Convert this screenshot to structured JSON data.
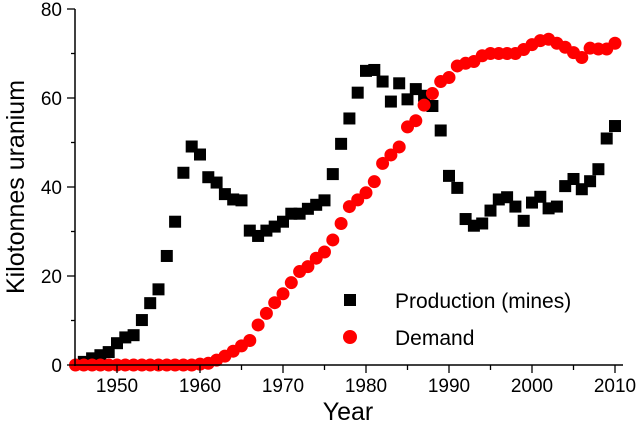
{
  "chart_data": {
    "type": "scatter",
    "title": "",
    "xlabel": "Year",
    "ylabel": "Kilotonnes uranium",
    "xlim": [
      1945,
      2011
    ],
    "ylim": [
      0,
      80
    ],
    "xticks": [
      "1950",
      "1960",
      "1970",
      "1980",
      "1990",
      "2000",
      "2010"
    ],
    "yticks": [
      "0",
      "20",
      "40",
      "60",
      "80"
    ],
    "grid": false,
    "legend_position": "bottom-center",
    "series": [
      {
        "name": "Production (mines)",
        "marker": "square",
        "color": "#000000",
        "x": [
          1946,
          1947,
          1948,
          1949,
          1950,
          1951,
          1952,
          1953,
          1954,
          1955,
          1956,
          1957,
          1958,
          1959,
          1960,
          1961,
          1962,
          1963,
          1964,
          1965,
          1966,
          1967,
          1968,
          1969,
          1970,
          1971,
          1972,
          1973,
          1974,
          1975,
          1976,
          1977,
          1978,
          1979,
          1980,
          1981,
          1982,
          1983,
          1984,
          1985,
          1986,
          1987,
          1988,
          1989,
          1990,
          1991,
          1992,
          1993,
          1994,
          1995,
          1996,
          1997,
          1998,
          1999,
          2000,
          2001,
          2002,
          2003,
          2004,
          2005,
          2006,
          2007,
          2008,
          2009,
          2010
        ],
        "y": [
          0.7,
          1.5,
          2.2,
          2.9,
          4.9,
          6.2,
          6.7,
          10.1,
          13.9,
          17,
          24.5,
          32.2,
          43.2,
          49.1,
          47.3,
          42.2,
          41,
          38.4,
          37.2,
          37,
          30.2,
          29,
          30.2,
          31.1,
          32.2,
          34,
          34,
          35.1,
          36,
          37,
          42.9,
          49.7,
          55.4,
          61.2,
          66.1,
          66.3,
          63.7,
          59.2,
          63.3,
          59.7,
          62,
          60.5,
          58.2,
          52.7,
          42.5,
          39.8,
          32.8,
          31.3,
          31.8,
          34.7,
          37.2,
          37.7,
          35.6,
          32.4,
          36.5,
          37.8,
          35.2,
          35.6,
          40.2,
          41.8,
          39.5,
          41.3,
          44,
          50.9,
          53.7
        ]
      },
      {
        "name": "Demand",
        "marker": "circle",
        "color": "#ff0000",
        "x": [
          1945,
          1946,
          1947,
          1948,
          1949,
          1950,
          1951,
          1952,
          1953,
          1954,
          1955,
          1956,
          1957,
          1958,
          1959,
          1960,
          1961,
          1962,
          1963,
          1964,
          1965,
          1966,
          1967,
          1968,
          1969,
          1970,
          1971,
          1972,
          1973,
          1974,
          1975,
          1976,
          1977,
          1978,
          1979,
          1980,
          1981,
          1982,
          1983,
          1984,
          1985,
          1986,
          1987,
          1988,
          1989,
          1990,
          1991,
          1992,
          1993,
          1994,
          1995,
          1996,
          1997,
          1998,
          1999,
          2000,
          2001,
          2002,
          2003,
          2004,
          2005,
          2006,
          2007,
          2008,
          2009,
          2010
        ],
        "y": [
          0,
          0,
          0,
          0,
          0,
          0,
          0,
          0,
          0,
          0,
          0,
          0,
          0,
          0,
          0,
          0.2,
          0.4,
          1.1,
          2,
          3.1,
          4.3,
          5.5,
          9,
          11.6,
          14,
          16,
          18.5,
          21,
          22.1,
          24,
          25.4,
          28.1,
          31.8,
          35.6,
          37.1,
          38.7,
          41.2,
          45.3,
          47.2,
          49,
          53.5,
          54.9,
          58.4,
          61,
          63.7,
          64.6,
          67.2,
          67.8,
          68.2,
          69.5,
          70,
          70,
          70,
          70,
          70.9,
          72,
          72.9,
          73.2,
          72.3,
          71.4,
          70.2,
          69.1,
          71.2,
          71,
          71,
          72.3
        ]
      }
    ]
  }
}
